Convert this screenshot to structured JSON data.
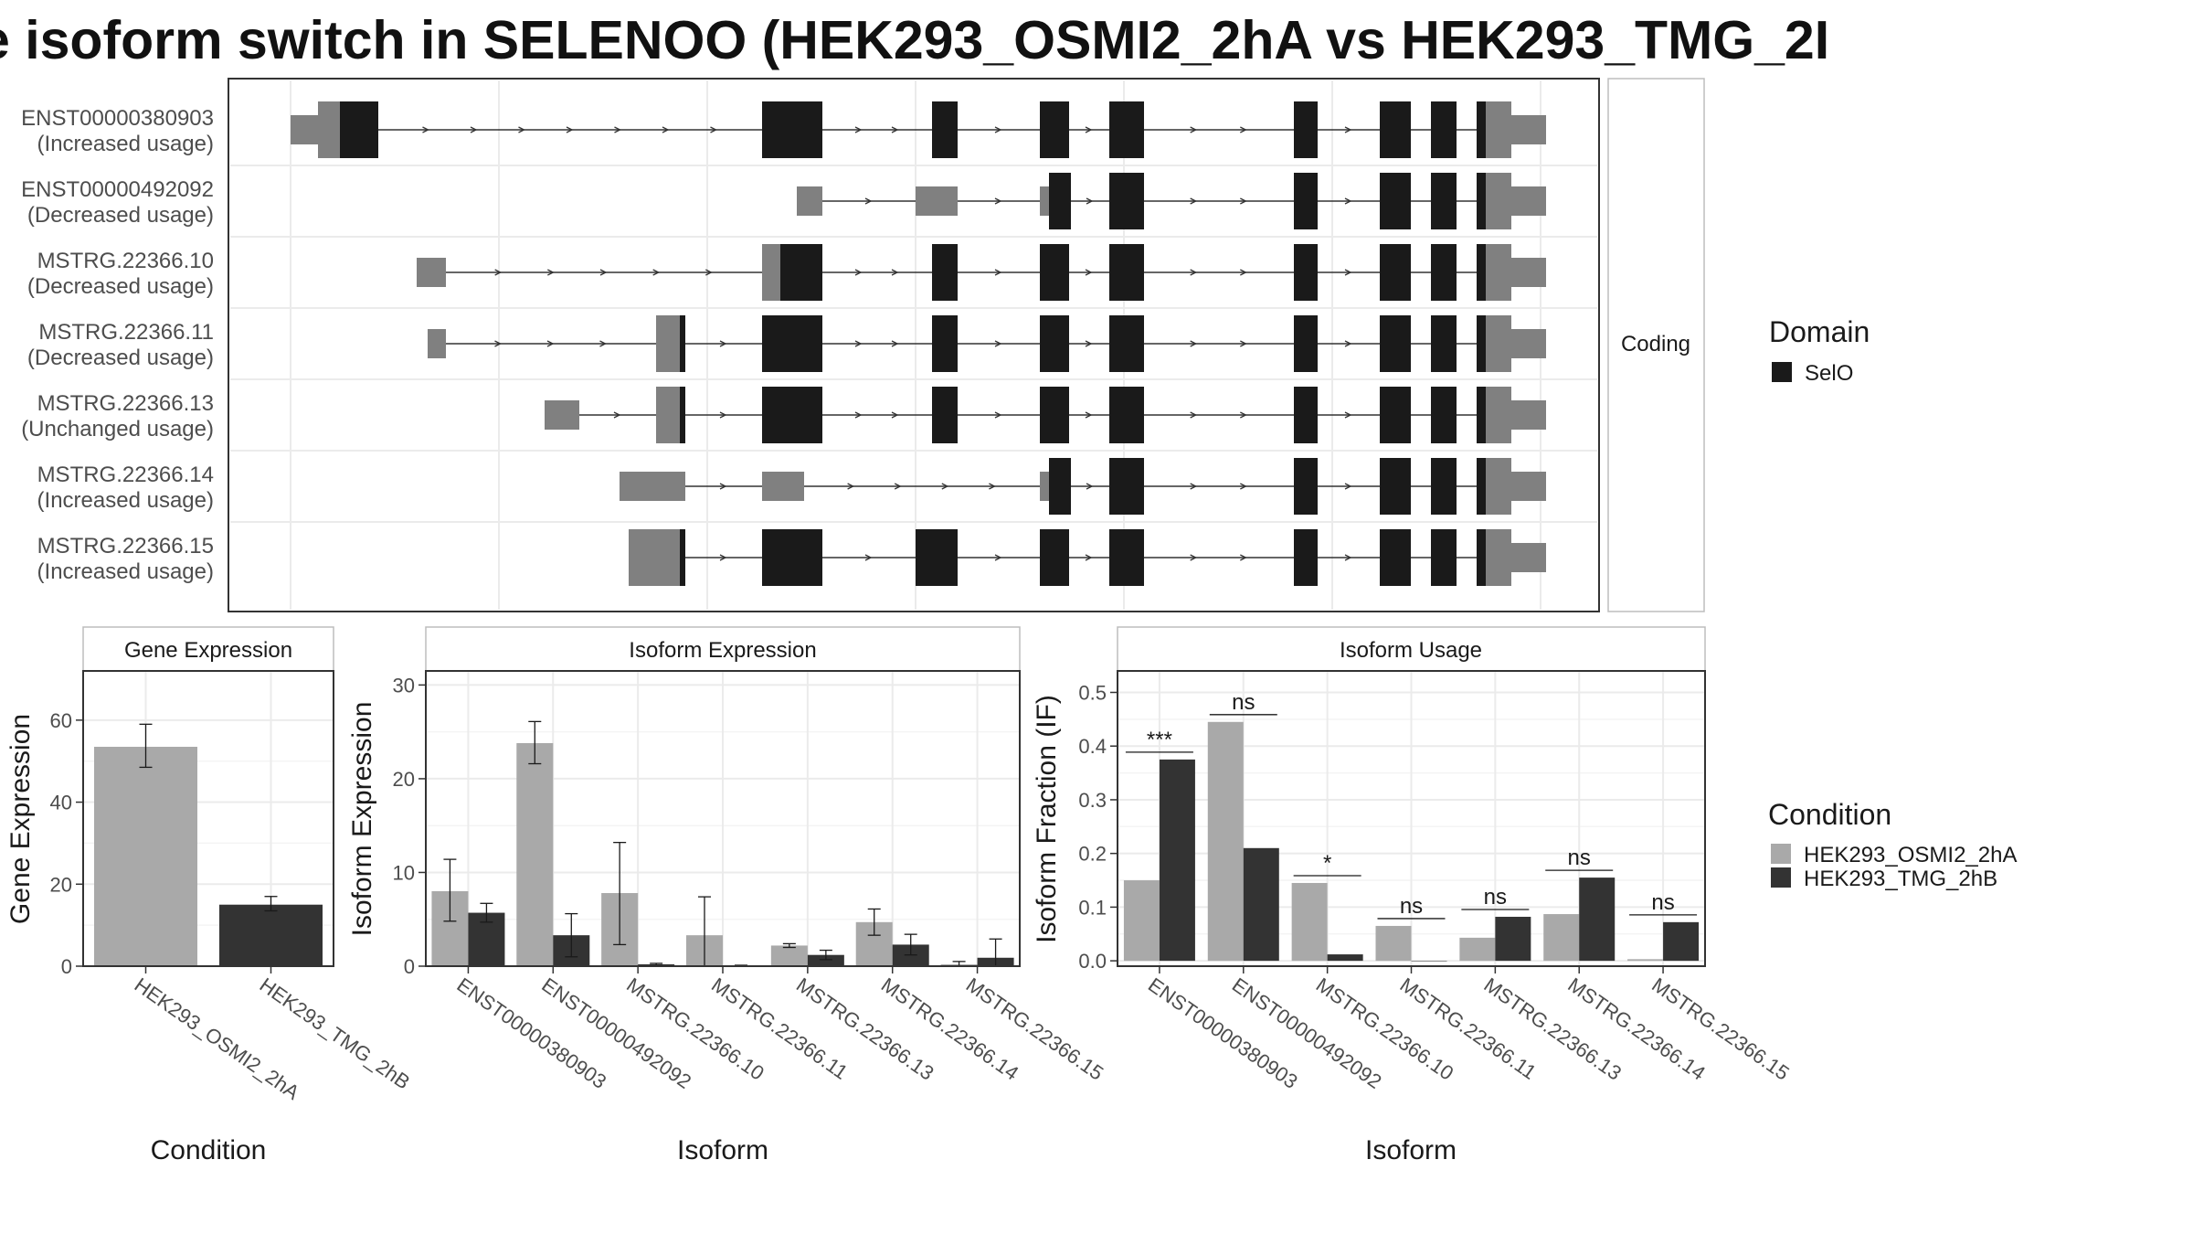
{
  "title": "e isoform switch in SELENOO (HEK293_OSMI2_2hA vs HEK293_TMG_2I",
  "colors": {
    "condA": "#a9a9a9",
    "condB": "#333333",
    "utr": "#808080",
    "cds": "#1a1a1a",
    "grid": "#ebebeb",
    "frame": "#333333"
  },
  "chart_data": [
    {
      "type": "other",
      "kind": "transcript-structure",
      "facet_label": "Coding",
      "transcripts": [
        {
          "id": "ENST00000380903",
          "usage": "(Increased usage)"
        },
        {
          "id": "ENST00000492092",
          "usage": "(Decreased usage)"
        },
        {
          "id": "MSTRG.22366.10",
          "usage": "(Decreased usage)"
        },
        {
          "id": "MSTRG.22366.11",
          "usage": "(Decreased usage)"
        },
        {
          "id": "MSTRG.22366.13",
          "usage": "(Unchanged usage)"
        },
        {
          "id": "MSTRG.22366.14",
          "usage": "(Increased usage)"
        },
        {
          "id": "MSTRG.22366.15",
          "usage": "(Increased usage)"
        }
      ],
      "legend": {
        "title": "Domain",
        "items": [
          "SelO"
        ]
      }
    },
    {
      "type": "bar",
      "facet_label": "Gene Expression",
      "xlabel": "Condition",
      "ylabel": "Gene Expression",
      "ylim": [
        0,
        72
      ],
      "yticks": [
        0,
        20,
        40,
        60
      ],
      "categories": [
        "HEK293_OSMI2_2hA",
        "HEK293_TMG_2hB"
      ],
      "values": [
        53.5,
        15.0
      ],
      "errors": [
        [
          48.5,
          59.0
        ],
        [
          13.5,
          17.0
        ]
      ]
    },
    {
      "type": "bar",
      "facet_label": "Isoform Expression",
      "xlabel": "Isoform",
      "ylabel": "Isoform Expression",
      "ylim": [
        0,
        31.5
      ],
      "yticks": [
        0,
        10,
        20,
        30
      ],
      "categories": [
        "ENST00000380903",
        "ENST00000492092",
        "MSTRG.22366.10",
        "MSTRG.22366.11",
        "MSTRG.22366.13",
        "MSTRG.22366.14",
        "MSTRG.22366.15"
      ],
      "series": [
        {
          "name": "HEK293_OSMI2_2hA",
          "values": [
            8.0,
            23.8,
            7.8,
            3.3,
            2.2,
            4.7,
            0.2
          ],
          "errors": [
            [
              4.8,
              11.4
            ],
            [
              21.6,
              26.1
            ],
            [
              2.3,
              13.2
            ],
            [
              0,
              7.4
            ],
            [
              2.0,
              2.4
            ],
            [
              3.3,
              6.1
            ],
            [
              0,
              0.5
            ]
          ]
        },
        {
          "name": "HEK293_TMG_2hB",
          "values": [
            5.7,
            3.3,
            0.2,
            0.0,
            1.2,
            2.3,
            0.9
          ],
          "errors": [
            [
              4.7,
              6.7
            ],
            [
              1.0,
              5.6
            ],
            [
              0.1,
              0.3
            ],
            [
              0,
              0.1
            ],
            [
              0.7,
              1.7
            ],
            [
              1.2,
              3.4
            ],
            [
              0,
              2.9
            ]
          ]
        }
      ]
    },
    {
      "type": "bar",
      "facet_label": "Isoform Usage",
      "xlabel": "Isoform",
      "ylabel": "Isoform Fraction (IF)",
      "ylim": [
        -0.01,
        0.54
      ],
      "yticks": [
        0.0,
        0.1,
        0.2,
        0.3,
        0.4,
        0.5
      ],
      "categories": [
        "ENST00000380903",
        "ENST00000492092",
        "MSTRG.22366.10",
        "MSTRG.22366.11",
        "MSTRG.22366.13",
        "MSTRG.22366.14",
        "MSTRG.22366.15"
      ],
      "series": [
        {
          "name": "HEK293_OSMI2_2hA",
          "values": [
            0.15,
            0.445,
            0.145,
            0.065,
            0.043,
            0.087,
            0.003
          ]
        },
        {
          "name": "HEK293_TMG_2hB",
          "values": [
            0.375,
            0.21,
            0.012,
            0.0,
            0.082,
            0.155,
            0.072
          ]
        }
      ],
      "significance": [
        "***",
        "ns",
        "*",
        "ns",
        "ns",
        "ns",
        "ns"
      ],
      "legend": {
        "title": "Condition",
        "items": [
          "HEK293_OSMI2_2hA",
          "HEK293_TMG_2hB"
        ]
      }
    }
  ]
}
